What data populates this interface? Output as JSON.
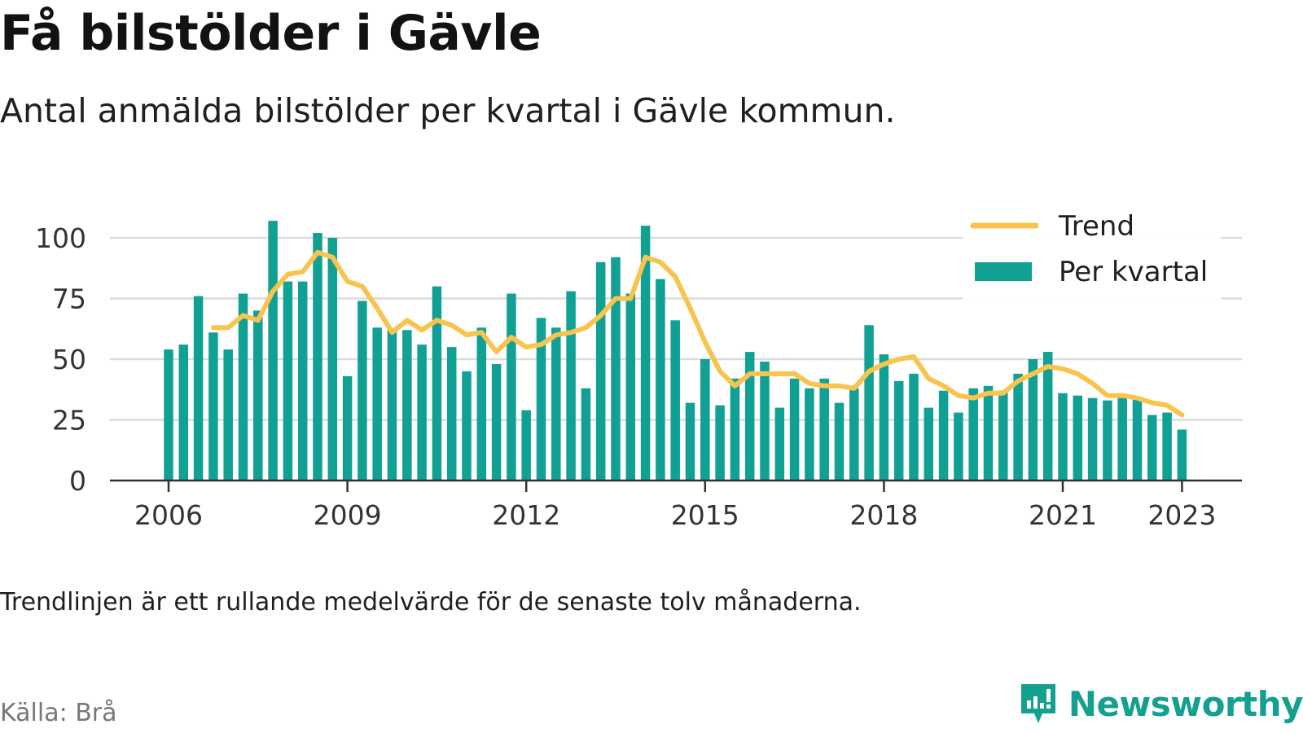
{
  "title": "Få bilstölder i Gävle",
  "subtitle": "Antal anmälda bilstölder per kvartal i Gävle kommun.",
  "footnote": "Trendlinjen är ett rullande medelvärde för de senaste tolv månaderna.",
  "source": "Källa: Brå",
  "brand": {
    "name": "Newsworthy",
    "icon": "newsworthy-logo-icon"
  },
  "colors": {
    "bars": "#11a094",
    "trend": "#f8c44e",
    "grid": "#dcdcdc",
    "axis": "#333333"
  },
  "chart_data": {
    "type": "bar",
    "title": "",
    "xlabel": "",
    "ylabel": "",
    "ylim": [
      0,
      105
    ],
    "y_ticks": [
      0,
      25,
      50,
      75,
      100
    ],
    "x_ticks": [
      "2006",
      "2009",
      "2012",
      "2015",
      "2018",
      "2021",
      "2023"
    ],
    "grid": true,
    "legend_position": "top-right",
    "categories": [
      "2006 K1",
      "2006 K2",
      "2006 K3",
      "2006 K4",
      "2007 K1",
      "2007 K2",
      "2007 K3",
      "2007 K4",
      "2008 K1",
      "2008 K2",
      "2008 K3",
      "2008 K4",
      "2009 K1",
      "2009 K2",
      "2009 K3",
      "2009 K4",
      "2010 K1",
      "2010 K2",
      "2010 K3",
      "2010 K4",
      "2011 K1",
      "2011 K2",
      "2011 K3",
      "2011 K4",
      "2012 K1",
      "2012 K2",
      "2012 K3",
      "2012 K4",
      "2013 K1",
      "2013 K2",
      "2013 K3",
      "2013 K4",
      "2014 K1",
      "2014 K2",
      "2014 K3",
      "2014 K4",
      "2015 K1",
      "2015 K2",
      "2015 K3",
      "2015 K4",
      "2016 K1",
      "2016 K2",
      "2016 K3",
      "2016 K4",
      "2017 K1",
      "2017 K2",
      "2017 K3",
      "2017 K4",
      "2018 K1",
      "2018 K2",
      "2018 K3",
      "2018 K4",
      "2019 K1",
      "2019 K2",
      "2019 K3",
      "2019 K4",
      "2020 K1",
      "2020 K2",
      "2020 K3",
      "2020 K4",
      "2021 K1",
      "2021 K2",
      "2021 K3",
      "2021 K4",
      "2022 K1",
      "2022 K2",
      "2022 K3",
      "2022 K4",
      "2023 K1"
    ],
    "series": [
      {
        "name": "Per kvartal",
        "type": "bar",
        "values": [
          54,
          56,
          76,
          61,
          54,
          77,
          70,
          107,
          82,
          82,
          102,
          100,
          43,
          74,
          63,
          62,
          62,
          56,
          80,
          55,
          45,
          63,
          48,
          77,
          29,
          67,
          63,
          78,
          38,
          90,
          92,
          77,
          105,
          83,
          66,
          32,
          50,
          31,
          42,
          53,
          49,
          30,
          42,
          38,
          42,
          32,
          38,
          64,
          52,
          41,
          44,
          30,
          37,
          28,
          38,
          39,
          37,
          44,
          50,
          53,
          36,
          35,
          34,
          33,
          34,
          34,
          27,
          28,
          21
        ]
      },
      {
        "name": "Trend",
        "type": "line",
        "values": [
          null,
          null,
          null,
          63,
          63,
          68,
          66,
          78,
          85,
          86,
          94,
          92,
          82,
          80,
          71,
          61,
          66,
          62,
          66,
          64,
          60,
          61,
          53,
          59,
          55,
          56,
          60,
          61,
          63,
          68,
          75,
          75,
          92,
          90,
          84,
          71,
          57,
          45,
          39,
          44,
          44,
          44,
          44,
          40,
          39,
          39,
          38,
          45,
          48,
          50,
          51,
          42,
          39,
          35,
          34,
          36,
          36,
          41,
          44,
          47,
          46,
          44,
          40,
          35,
          35,
          34,
          32,
          31,
          27
        ]
      }
    ]
  }
}
